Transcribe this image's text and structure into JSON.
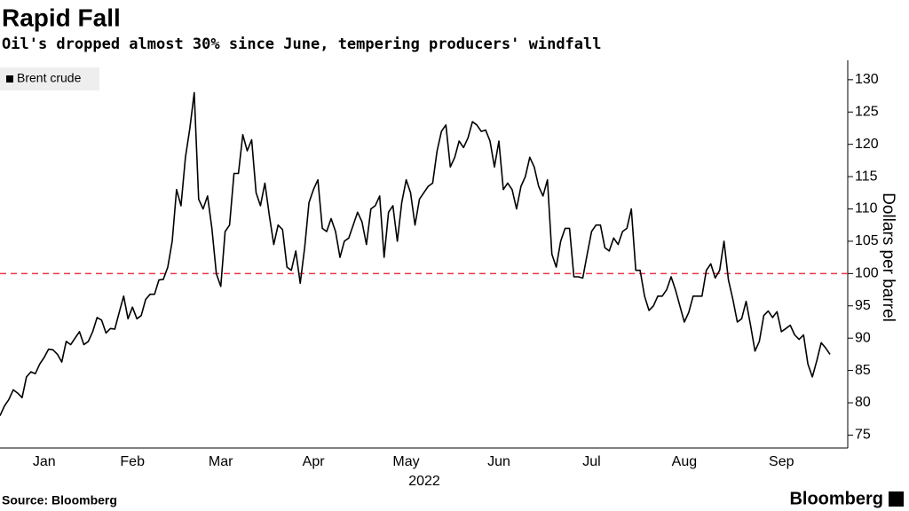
{
  "chart_data": {
    "type": "line",
    "title": "Rapid Fall",
    "subtitle": "Oil's dropped almost 30% since June, tempering producers' windfall",
    "y_label": "Dollars per barrel",
    "x_label": "2022",
    "source": "Source: Bloomberg",
    "logo": "Bloomberg",
    "categories": [
      null,
      null,
      null,
      null,
      null,
      null,
      null,
      null,
      null,
      null,
      "Jan",
      null,
      null,
      null,
      null,
      null,
      null,
      null,
      null,
      null,
      null,
      null,
      null,
      null,
      null,
      null,
      null,
      null,
      null,
      null,
      "Feb",
      null,
      null,
      null,
      null,
      null,
      null,
      null,
      null,
      null,
      null,
      null,
      null,
      null,
      null,
      null,
      null,
      null,
      null,
      null,
      "Mar",
      null,
      null,
      null,
      null,
      null,
      null,
      null,
      null,
      null,
      null,
      null,
      null,
      null,
      null,
      null,
      null,
      null,
      null,
      null,
      null,
      "Apr",
      null,
      null,
      null,
      null,
      null,
      null,
      null,
      null,
      null,
      null,
      null,
      null,
      null,
      null,
      null,
      null,
      null,
      null,
      null,
      null,
      "May",
      null,
      null,
      null,
      null,
      null,
      null,
      null,
      null,
      null,
      null,
      null,
      null,
      null,
      null,
      null,
      null,
      null,
      null,
      null,
      null,
      "Jun",
      null,
      null,
      null,
      null,
      null,
      null,
      null,
      null,
      null,
      null,
      null,
      null,
      null,
      null,
      null,
      null,
      null,
      null,
      null,
      null,
      "Jul",
      null,
      null,
      null,
      null,
      null,
      null,
      null,
      null,
      null,
      null,
      null,
      null,
      null,
      null,
      null,
      null,
      null,
      null,
      null,
      null,
      "Aug",
      null,
      null,
      null,
      null,
      null,
      null,
      null,
      null,
      null,
      null,
      null,
      null,
      null,
      null,
      null,
      null,
      null,
      null,
      null,
      null,
      null,
      "Sep",
      null,
      null,
      null,
      null,
      null,
      null,
      null,
      null,
      null,
      null,
      null
    ],
    "series": [
      {
        "name": "Brent crude",
        "color": "#000000",
        "values": [
          78,
          79.5,
          80.5,
          82,
          81.5,
          80.8,
          84,
          84.8,
          84.5,
          86,
          87,
          88.3,
          88.2,
          87.5,
          86.3,
          89.5,
          89,
          90,
          91,
          89,
          89.5,
          91,
          93.2,
          92.8,
          90.8,
          91.5,
          91.4,
          94,
          96.5,
          93,
          94.8,
          93,
          93.5,
          96,
          96.8,
          96.8,
          99,
          99.1,
          101,
          105,
          113,
          110.5,
          118,
          122.5,
          128,
          111.5,
          110,
          112,
          107,
          100,
          98,
          106.5,
          107.5,
          115.5,
          115.5,
          121.5,
          119,
          120.7,
          112.5,
          110.5,
          114,
          109,
          104.5,
          107.5,
          106.8,
          101,
          100.5,
          103.5,
          98.5,
          104,
          111,
          113,
          114.5,
          107,
          106.5,
          108.5,
          106.5,
          102.5,
          105,
          105.5,
          107.5,
          109.5,
          108,
          104.5,
          110,
          110.5,
          112,
          102.5,
          109.5,
          110.5,
          105,
          111,
          114.5,
          112.5,
          107.5,
          111.5,
          112.5,
          113.5,
          114,
          119,
          122,
          123,
          116.5,
          118,
          120.5,
          119.5,
          121,
          123.5,
          123,
          122,
          122.2,
          120.5,
          116.5,
          120.5,
          113,
          114,
          113,
          110,
          113.5,
          115,
          118,
          116.5,
          113.5,
          112,
          114.5,
          103,
          101,
          105,
          107,
          107,
          99.5,
          99.5,
          99.3,
          103,
          106.5,
          107.5,
          107.5,
          104,
          103.5,
          105.5,
          104.5,
          106.5,
          107,
          110,
          100.5,
          100.5,
          96.5,
          94.3,
          95,
          96.5,
          96.5,
          97.5,
          99.5,
          97.5,
          95,
          92.5,
          94,
          96.5,
          96.5,
          96.5,
          100.5,
          101.5,
          99.3,
          100.5,
          105,
          99,
          96,
          92.5,
          93,
          95.7,
          92,
          88,
          89.5,
          93.5,
          94.2,
          93.2,
          94.1,
          91,
          91.5,
          92,
          90.5,
          89.8,
          90.5,
          86,
          84,
          86.5,
          89.3,
          88.5,
          87.5
        ]
      }
    ],
    "ylim": [
      73,
      133
    ],
    "yticks": [
      75,
      80,
      85,
      90,
      95,
      100,
      105,
      110,
      115,
      120,
      125,
      130
    ],
    "reference_line": {
      "value": 100,
      "color": "#e8384f",
      "style": "dashed"
    },
    "legend": "top-left"
  }
}
